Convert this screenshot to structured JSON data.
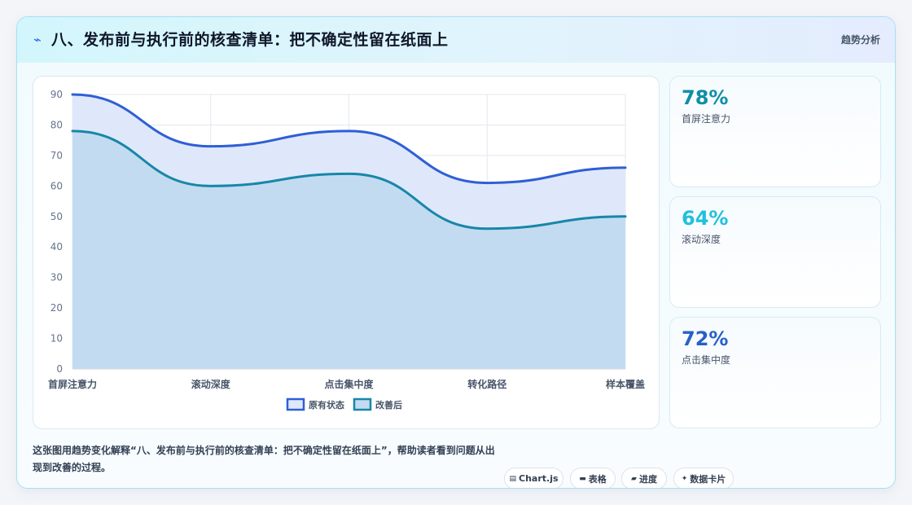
{
  "header": {
    "title": "八、发布前与执行前的核查清单：把不确定性留在纸面上",
    "tag": "趋势分析"
  },
  "chart_data": {
    "type": "area",
    "categories": [
      "首屏注意力",
      "滚动深度",
      "点击集中度",
      "转化路径",
      "样本覆盖"
    ],
    "series": [
      {
        "name": "原有状态",
        "values": [
          90,
          73,
          78,
          61,
          66
        ],
        "color": "#2f5fd6",
        "fill": "#dfe8fb"
      },
      {
        "name": "改善后",
        "values": [
          78,
          60,
          64,
          46,
          50
        ],
        "color": "#1787a8",
        "fill": "#c3dbf1"
      }
    ],
    "ylim": [
      0,
      90
    ],
    "yticks": [
      0,
      10,
      20,
      30,
      40,
      50,
      60,
      70,
      80,
      90
    ],
    "grid": true,
    "legend": "bottom",
    "xlabel": "",
    "ylabel": ""
  },
  "kpis": [
    {
      "value": "78%",
      "label": "首屏注意力",
      "color": "#0e8fa6"
    },
    {
      "value": "64%",
      "label": "滚动深度",
      "color": "#22c0dc"
    },
    {
      "value": "72%",
      "label": "点击集中度",
      "color": "#2760c9"
    }
  ],
  "caption": "这张图用趋势变化解释“八、发布前与执行前的核查清单：把不确定性留在纸面上”，帮助读者看到问题从出现到改善的过程。",
  "chips": [
    {
      "icon": "▤",
      "label": "Chart.js"
    },
    {
      "icon": "▬",
      "label": "表格"
    },
    {
      "icon": "▰",
      "label": "进度"
    },
    {
      "icon": "✦",
      "label": "数据卡片"
    }
  ]
}
